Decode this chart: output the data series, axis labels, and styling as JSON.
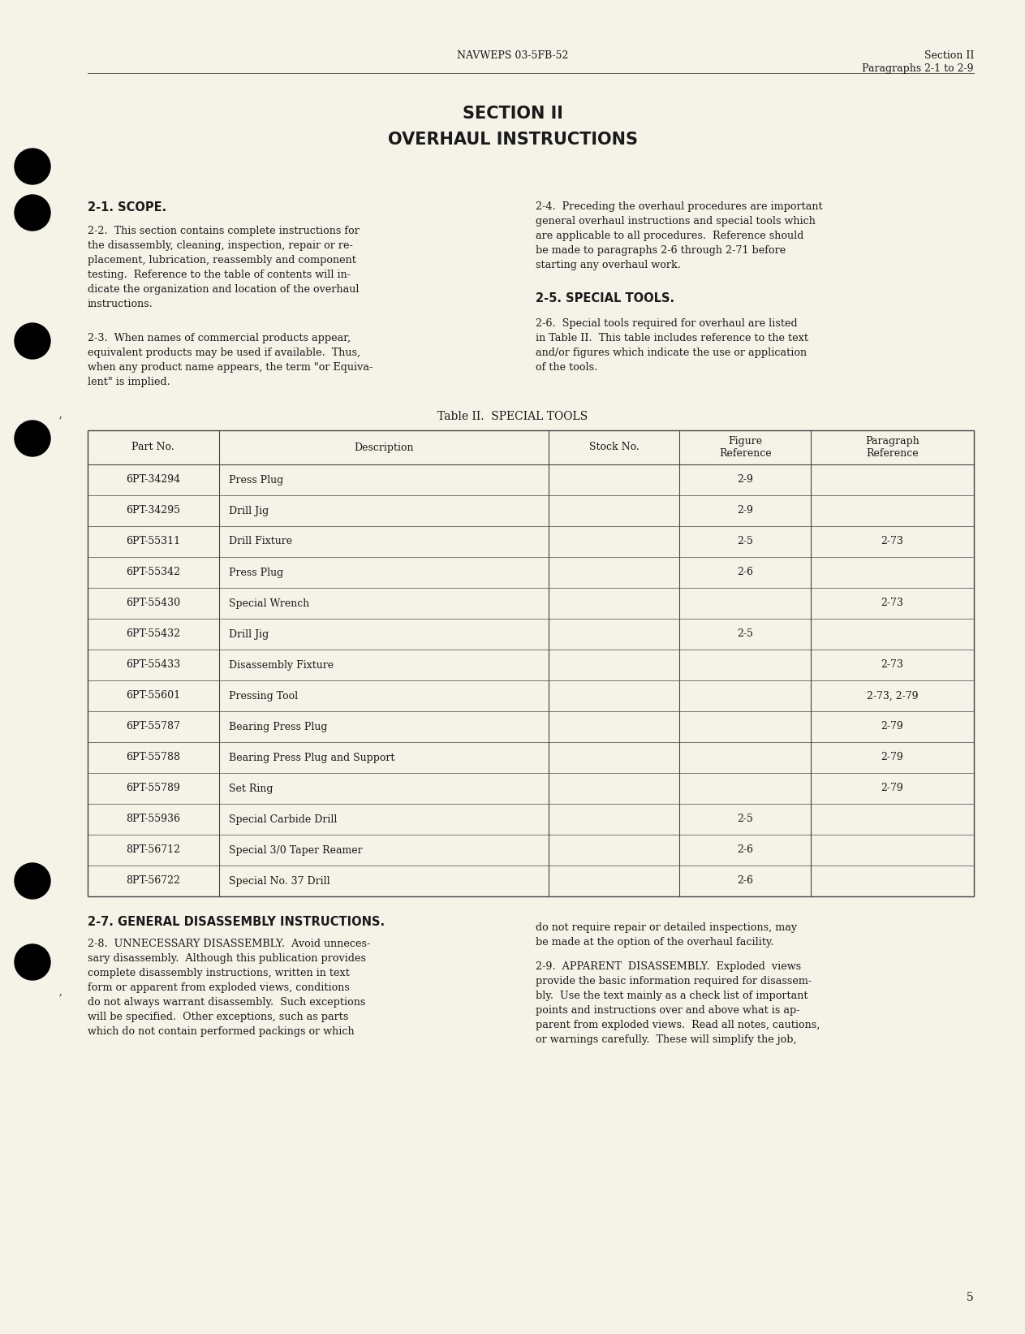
{
  "page_bg": "#f5f2e8",
  "header_left": "NAVWEPS 03-5FB-52",
  "header_right_line1": "Section II",
  "header_right_line2": "Paragraphs 2-1 to 2-9",
  "section_title_line1": "SECTION II",
  "section_title_line2": "OVERHAUL INSTRUCTIONS",
  "section_heading": "2-1. SCOPE.",
  "table_title": "Table II.  SPECIAL TOOLS",
  "table_headers": [
    "Part No.",
    "Description",
    "Stock No.",
    "Figure\nReference",
    "Paragraph\nReference"
  ],
  "table_rows": [
    [
      "6PT-34294",
      "Press Plug",
      "",
      "2-9",
      ""
    ],
    [
      "6PT-34295",
      "Drill Jig",
      "",
      "2-9",
      ""
    ],
    [
      "6PT-55311",
      "Drill Fixture",
      "",
      "2-5",
      "2-73"
    ],
    [
      "6PT-55342",
      "Press Plug",
      "",
      "2-6",
      ""
    ],
    [
      "6PT-55430",
      "Special Wrench",
      "",
      "",
      "2-73"
    ],
    [
      "6PT-55432",
      "Drill Jig",
      "",
      "2-5",
      ""
    ],
    [
      "6PT-55433",
      "Disassembly Fixture",
      "",
      "",
      "2-73"
    ],
    [
      "6PT-55601",
      "Pressing Tool",
      "",
      "",
      "2-73, 2-79"
    ],
    [
      "6PT-55787",
      "Bearing Press Plug",
      "",
      "",
      "2-79"
    ],
    [
      "6PT-55788",
      "Bearing Press Plug and Support",
      "",
      "",
      "2-79"
    ],
    [
      "6PT-55789",
      "Set Ring",
      "",
      "",
      "2-79"
    ],
    [
      "8PT-55936",
      "Special Carbide Drill",
      "",
      "2-5",
      ""
    ],
    [
      "8PT-56712",
      "Special 3/0 Taper Reamer",
      "",
      "2-6",
      ""
    ],
    [
      "8PT-56722",
      "Special No. 37 Drill",
      "",
      "2-6",
      ""
    ]
  ],
  "general_disassembly_heading": "2-7. GENERAL DISASSEMBLY INSTRUCTIONS.",
  "page_number": "5",
  "text_color": "#1a1a1a",
  "line_color": "#444444",
  "bg_color": "#f5f2e8"
}
